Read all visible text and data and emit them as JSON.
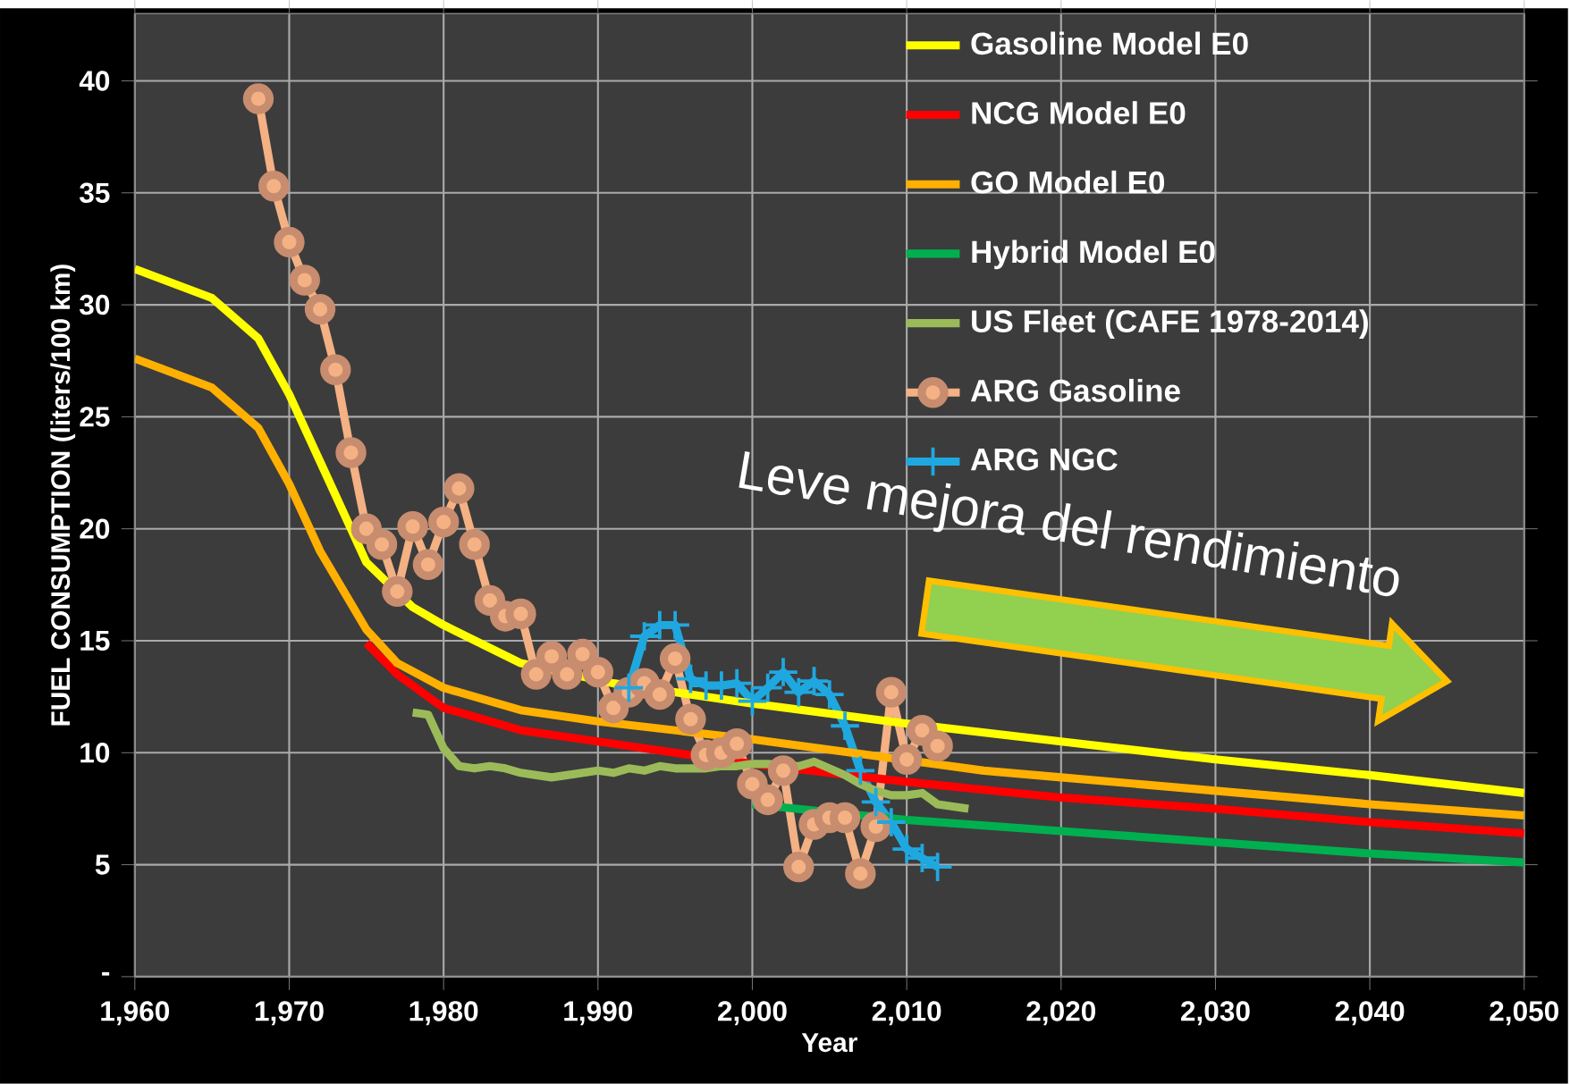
{
  "chart_data": {
    "type": "line",
    "xlabel": "Year",
    "ylabel": "FUEL CONSUMPTION (liters/100 km)",
    "xlim": [
      1960,
      2050
    ],
    "ylim": [
      0,
      43
    ],
    "xticks": [
      {
        "value": 1960,
        "label": "1,960"
      },
      {
        "value": 1970,
        "label": "1,970"
      },
      {
        "value": 1980,
        "label": "1,980"
      },
      {
        "value": 1990,
        "label": "1,990"
      },
      {
        "value": 2000,
        "label": "2,000"
      },
      {
        "value": 2010,
        "label": "2,010"
      },
      {
        "value": 2020,
        "label": "2,020"
      },
      {
        "value": 2030,
        "label": "2,030"
      },
      {
        "value": 2040,
        "label": "2,040"
      },
      {
        "value": 2050,
        "label": "2,050"
      }
    ],
    "yticks": [
      {
        "value": 0,
        "label": "-"
      },
      5,
      10,
      15,
      20,
      25,
      30,
      35,
      40
    ],
    "grid": true,
    "legend": "top right",
    "annotations": [
      "Leve mejora del rendimiento"
    ],
    "series": [
      {
        "name": "Gasoline Model E0",
        "color": "#ffff00",
        "marker": "none",
        "x": [
          1960,
          1965,
          1968,
          1970,
          1972,
          1975,
          1978,
          1980,
          1985,
          1991,
          2000,
          2010,
          2020,
          2030,
          2040,
          2050
        ],
        "values": [
          31.6,
          30.3,
          28.5,
          26,
          23,
          18.5,
          16.5,
          15.7,
          14,
          13.1,
          12.2,
          11.3,
          10.5,
          9.7,
          9.0,
          8.2
        ]
      },
      {
        "name": "NCG Model E0",
        "color": "#ff0000",
        "marker": "none",
        "x": [
          1975,
          1977,
          1980,
          1985,
          1990,
          2000,
          2010,
          2020,
          2030,
          2040,
          2050
        ],
        "values": [
          14.9,
          13.5,
          12.0,
          11.0,
          10.5,
          9.5,
          8.7,
          8.0,
          7.5,
          6.9,
          6.4
        ]
      },
      {
        "name": "GO Model E0",
        "color": "#ffb000",
        "marker": "none",
        "x": [
          1960,
          1965,
          1968,
          1970,
          1972,
          1975,
          1977,
          1980,
          1985,
          1990,
          2000,
          2015,
          2020,
          2030,
          2040,
          2050
        ],
        "values": [
          27.6,
          26.3,
          24.5,
          22,
          19,
          15.5,
          14,
          12.9,
          11.9,
          11.4,
          10.6,
          9.2,
          8.9,
          8.3,
          7.7,
          7.2
        ]
      },
      {
        "name": "Hybrid Model E0",
        "color": "#00b050",
        "marker": "none",
        "x": [
          2000,
          2010,
          2020,
          2030,
          2040,
          2050
        ],
        "values": [
          7.7,
          7.0,
          6.5,
          6.0,
          5.5,
          5.1
        ]
      },
      {
        "name": "US Fleet (CAFE 1978-2014)",
        "color": "#9bbb59",
        "marker": "none",
        "x": [
          1978,
          1979,
          1980,
          1981,
          1982,
          1983,
          1984,
          1985,
          1986,
          1987,
          1988,
          1989,
          1990,
          1991,
          1992,
          1993,
          1994,
          1995,
          1996,
          1997,
          1998,
          1999,
          2000,
          2001,
          2002,
          2003,
          2004,
          2005,
          2006,
          2007,
          2008,
          2009,
          2010,
          2011,
          2012,
          2013,
          2014
        ],
        "values": [
          11.8,
          11.7,
          10.2,
          9.4,
          9.3,
          9.4,
          9.3,
          9.1,
          9.0,
          8.9,
          9.0,
          9.1,
          9.2,
          9.1,
          9.3,
          9.2,
          9.4,
          9.3,
          9.3,
          9.3,
          9.4,
          9.4,
          9.5,
          9.5,
          null,
          9.4,
          9.6,
          9.3,
          9.0,
          8.6,
          8.3,
          8.1,
          8.1,
          8.2,
          7.7,
          7.6,
          7.5
        ]
      },
      {
        "name": "ARG Gasoline",
        "color": "#f4b183",
        "marker": "circle",
        "x": [
          1968,
          1969,
          1970,
          1971,
          1972,
          1973,
          1974,
          1975,
          1976,
          1977,
          1978,
          1979,
          1980,
          1981,
          1982,
          1983,
          1984,
          1985,
          1986,
          1987,
          1988,
          1989,
          1990,
          1991,
          1992,
          1993,
          1994,
          1995,
          1996,
          1997,
          1998,
          1999,
          2000,
          2001,
          2002,
          2003,
          2004,
          2005,
          2006,
          2007,
          2008,
          2009,
          2010,
          2011,
          2012
        ],
        "values": [
          39.2,
          35.3,
          32.8,
          31.1,
          29.8,
          27.1,
          23.4,
          20.0,
          19.3,
          17.2,
          20.1,
          18.4,
          20.3,
          21.8,
          19.3,
          16.8,
          16.1,
          16.2,
          13.5,
          14.3,
          13.5,
          14.4,
          13.6,
          12.0,
          12.7,
          13.1,
          12.6,
          14.2,
          11.5,
          9.9,
          10.0,
          10.4,
          8.6,
          7.9,
          9.2,
          4.9,
          6.8,
          7.1,
          7.1,
          4.6,
          6.7,
          12.7,
          9.7,
          11.0,
          10.3
        ]
      },
      {
        "name": "ARG NGC",
        "color": "#1fa8e0",
        "marker": "cross",
        "x": [
          1992,
          1993,
          1994,
          1995,
          1996,
          1997,
          1998,
          1999,
          2000,
          2001,
          2002,
          2003,
          2004,
          2005,
          2006,
          2007,
          2008,
          2009,
          2010,
          2011,
          2012
        ],
        "values": [
          12.9,
          15.2,
          15.7,
          15.7,
          13.3,
          13.0,
          13.0,
          13.1,
          12.3,
          12.9,
          13.6,
          12.7,
          13.2,
          12.6,
          11.2,
          9.2,
          7.8,
          6.9,
          5.7,
          5.3,
          4.9
        ]
      }
    ]
  }
}
